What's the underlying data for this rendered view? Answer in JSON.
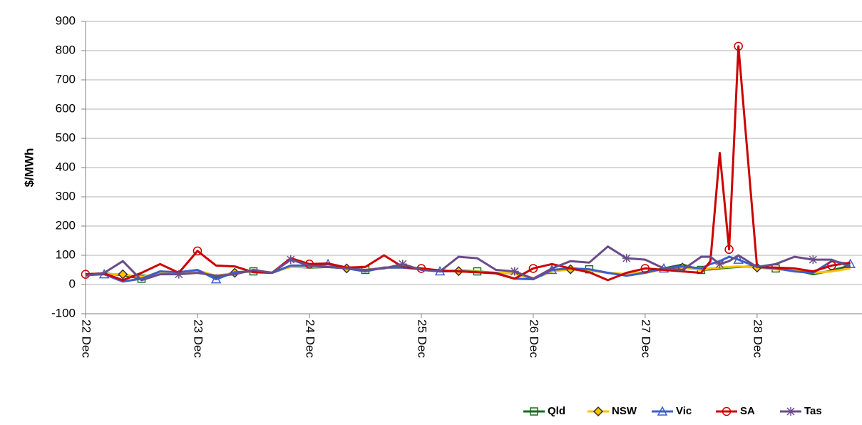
{
  "chart_data": {
    "type": "line",
    "y_label": "$/MWh",
    "x": [
      0,
      4,
      8,
      12,
      16,
      20,
      24,
      28,
      32,
      36,
      40,
      44,
      48,
      52,
      56,
      60,
      64,
      68,
      72,
      76,
      80,
      84,
      88,
      92,
      96,
      100,
      104,
      108,
      112,
      116,
      120,
      124,
      128,
      132,
      134,
      136,
      138,
      140,
      144,
      148,
      152,
      156,
      160,
      164
    ],
    "xlim": [
      0,
      166.5
    ],
    "xticks": [
      {
        "value": 0,
        "label": "22 Dec"
      },
      {
        "value": 24,
        "label": "23 Dec"
      },
      {
        "value": 48,
        "label": "24 Dec"
      },
      {
        "value": 72,
        "label": "25 Dec"
      },
      {
        "value": 96,
        "label": "26 Dec"
      },
      {
        "value": 120,
        "label": "27 Dec"
      },
      {
        "value": 144,
        "label": "28 Dec"
      }
    ],
    "ylim": [
      -100,
      900
    ],
    "yticks": [
      -100,
      0,
      100,
      200,
      300,
      400,
      500,
      600,
      700,
      800,
      900
    ],
    "grid": true,
    "legend": "bottom-right",
    "series": [
      {
        "name": "Qld",
        "color": "#1a6b1a",
        "marker": "square",
        "values": [
          35,
          38,
          32,
          20,
          45,
          40,
          48,
          25,
          42,
          45,
          40,
          62,
          58,
          60,
          55,
          50,
          58,
          60,
          52,
          45,
          48,
          45,
          40,
          38,
          20,
          45,
          55,
          52,
          40,
          35,
          42,
          55,
          68,
          50,
          52,
          55,
          58,
          60,
          62,
          55,
          50,
          35,
          48,
          65
        ]
      },
      {
        "name": "NSW",
        "color": "#ffc000",
        "marker": "diamond",
        "values": [
          33,
          36,
          35,
          25,
          42,
          40,
          48,
          30,
          40,
          45,
          42,
          60,
          60,
          62,
          55,
          50,
          58,
          58,
          52,
          45,
          46,
          44,
          40,
          38,
          22,
          45,
          52,
          48,
          40,
          36,
          40,
          52,
          58,
          50,
          55,
          58,
          60,
          62,
          58,
          52,
          50,
          40,
          45,
          55
        ]
      },
      {
        "name": "Vic",
        "color": "#3a5fcd",
        "marker": "triangle",
        "values": [
          32,
          35,
          10,
          20,
          45,
          42,
          50,
          18,
          42,
          45,
          40,
          65,
          65,
          70,
          55,
          45,
          58,
          58,
          52,
          45,
          46,
          42,
          40,
          20,
          18,
          50,
          55,
          52,
          40,
          30,
          40,
          55,
          62,
          55,
          70,
          80,
          95,
          85,
          60,
          55,
          45,
          40,
          80,
          70
        ]
      },
      {
        "name": "SA",
        "color": "#cc0000",
        "marker": "circle",
        "values": [
          35,
          38,
          15,
          40,
          70,
          40,
          115,
          65,
          62,
          42,
          40,
          90,
          70,
          72,
          58,
          60,
          100,
          60,
          55,
          48,
          45,
          42,
          38,
          20,
          55,
          70,
          55,
          42,
          15,
          40,
          55,
          50,
          45,
          40,
          80,
          450,
          120,
          815,
          60,
          58,
          55,
          45,
          65,
          75
        ]
      },
      {
        "name": "Tas",
        "color": "#6b4c8a",
        "marker": "star",
        "values": [
          30,
          40,
          80,
          15,
          35,
          35,
          40,
          30,
          35,
          50,
          40,
          85,
          65,
          60,
          55,
          50,
          55,
          70,
          50,
          45,
          95,
          90,
          50,
          45,
          20,
          55,
          80,
          75,
          130,
          90,
          85,
          55,
          50,
          95,
          95,
          70,
          80,
          100,
          60,
          70,
          95,
          85,
          85,
          60
        ]
      }
    ]
  }
}
